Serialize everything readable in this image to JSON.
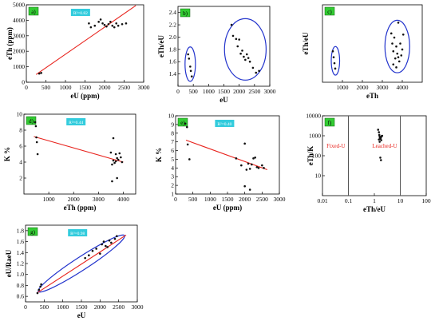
{
  "colors": {
    "point": "#111111",
    "fit": "#e8231d",
    "ellipse": "#2233cc",
    "badge": "#33cc33",
    "r2box": "#33ccdd",
    "lines": "#555555",
    "fixed_text": "#e8231d"
  },
  "chart_data": [
    {
      "id": "a",
      "panel_label": "a)",
      "type": "scatter",
      "xlabel": "eU (ppm)",
      "ylabel": "eTh (ppm)",
      "xlim": [
        0,
        3000
      ],
      "ylim": [
        0,
        5000
      ],
      "xticks": [
        "0",
        "500",
        "1000",
        "1500",
        "2000",
        "2500",
        "3000"
      ],
      "yticks": [
        "0",
        "1000",
        "2000",
        "3000",
        "4000",
        "5000"
      ],
      "r2_label": "R²=0.82",
      "fit": [
        [
          250,
          500
        ],
        [
          2800,
          4950
        ]
      ],
      "points": [
        [
          330,
          560
        ],
        [
          380,
          600
        ],
        [
          1600,
          3800
        ],
        [
          1650,
          3550
        ],
        [
          1750,
          3650
        ],
        [
          1850,
          3900
        ],
        [
          1900,
          4050
        ],
        [
          1950,
          3800
        ],
        [
          2000,
          3700
        ],
        [
          2050,
          3600
        ],
        [
          2100,
          3750
        ],
        [
          2150,
          3900
        ],
        [
          2200,
          3650
        ],
        [
          2250,
          3550
        ],
        [
          2300,
          3800
        ],
        [
          2350,
          3650
        ],
        [
          2450,
          3750
        ],
        [
          2550,
          3800
        ]
      ]
    },
    {
      "id": "b",
      "panel_label": "b)",
      "type": "scatter",
      "xlabel": "eU",
      "ylabel": "eTh/eU",
      "xlim": [
        0,
        3000
      ],
      "ylim": [
        1.2,
        2.5
      ],
      "xticks": [
        "0",
        "500",
        "1000",
        "1500",
        "2000",
        "2500",
        "3000"
      ],
      "yticks": [
        "1.4",
        "1.6",
        "1.8",
        "2.0",
        "2.2",
        "2.4"
      ],
      "ellipses": [
        {
          "cx": 400,
          "cy": 1.56,
          "rx": 170,
          "ry": 0.28
        },
        {
          "cx": 2200,
          "cy": 1.8,
          "rx": 680,
          "ry": 0.5
        }
      ],
      "points": [
        [
          330,
          1.72
        ],
        [
          360,
          1.65
        ],
        [
          400,
          1.52
        ],
        [
          420,
          1.45
        ],
        [
          450,
          1.36
        ],
        [
          1750,
          2.2
        ],
        [
          1800,
          2.02
        ],
        [
          1900,
          1.97
        ],
        [
          1950,
          1.85
        ],
        [
          2000,
          1.96
        ],
        [
          2050,
          1.73
        ],
        [
          2100,
          1.78
        ],
        [
          2150,
          1.68
        ],
        [
          2200,
          1.63
        ],
        [
          2250,
          1.72
        ],
        [
          2300,
          1.66
        ],
        [
          2350,
          1.6
        ],
        [
          2450,
          1.5
        ],
        [
          2550,
          1.42
        ],
        [
          2650,
          1.45
        ]
      ]
    },
    {
      "id": "c",
      "panel_label": "c)",
      "type": "scatter",
      "xlabel": "eTh",
      "ylabel": "eTh/eU",
      "xlim": [
        0,
        5000
      ],
      "ylim": [
        1.2,
        2.5
      ],
      "xticks": [
        "1000",
        "2000",
        "3000",
        "4000"
      ],
      "yticks": [],
      "ellipses": [
        {
          "cx": 650,
          "cy": 1.56,
          "rx": 210,
          "ry": 0.24
        },
        {
          "cx": 3750,
          "cy": 1.8,
          "rx": 620,
          "ry": 0.44
        }
      ],
      "points": [
        [
          520,
          1.72
        ],
        [
          560,
          1.62
        ],
        [
          600,
          1.52
        ],
        [
          640,
          1.43
        ],
        [
          3450,
          2.02
        ],
        [
          3500,
          1.85
        ],
        [
          3550,
          1.72
        ],
        [
          3600,
          1.95
        ],
        [
          3650,
          1.6
        ],
        [
          3700,
          1.8
        ],
        [
          3750,
          1.68
        ],
        [
          3800,
          2.2
        ],
        [
          3850,
          1.55
        ],
        [
          3900,
          1.85
        ],
        [
          3950,
          1.65
        ],
        [
          4000,
          1.75
        ],
        [
          3550,
          1.5
        ],
        [
          3700,
          1.45
        ],
        [
          3800,
          1.62
        ],
        [
          4050,
          2.0
        ]
      ]
    },
    {
      "id": "d",
      "panel_label": "d)",
      "type": "scatter",
      "xlabel": "eTh (ppm)",
      "ylabel": "K %",
      "xlim": [
        0,
        4500
      ],
      "ylim": [
        0,
        10
      ],
      "xticks": [
        "1000",
        "2000",
        "3000",
        "4000"
      ],
      "yticks": [
        "2",
        "4",
        "6",
        "8",
        "10"
      ],
      "r2_label": "R²=0.44",
      "fit": [
        [
          400,
          7.2
        ],
        [
          4000,
          4.0
        ]
      ],
      "points": [
        [
          450,
          9.0
        ],
        [
          480,
          8.5
        ],
        [
          500,
          7.1
        ],
        [
          550,
          5.0
        ],
        [
          520,
          6.5
        ],
        [
          3500,
          5.2
        ],
        [
          3550,
          3.7
        ],
        [
          3600,
          4.2
        ],
        [
          3600,
          7.0
        ],
        [
          3650,
          3.9
        ],
        [
          3700,
          4.1
        ],
        [
          3700,
          5.0
        ],
        [
          3750,
          4.5
        ],
        [
          3800,
          4.3
        ],
        [
          3850,
          5.1
        ],
        [
          3900,
          4.6
        ],
        [
          3950,
          4.0
        ],
        [
          3550,
          1.6
        ],
        [
          3750,
          2.0
        ]
      ]
    },
    {
      "id": "e",
      "panel_label": "e)",
      "type": "scatter",
      "xlabel": "eU (ppm)",
      "ylabel": "K %",
      "xlim": [
        0,
        3000
      ],
      "ylim": [
        1,
        10
      ],
      "xticks": [
        "0",
        "500",
        "1000",
        "1500",
        "2000",
        "2500",
        "3000"
      ],
      "yticks": [
        "1",
        "2",
        "3",
        "4",
        "5",
        "6",
        "7",
        "8",
        "9",
        "10"
      ],
      "r2_label": "R²=0.40",
      "fit": [
        [
          300,
          7.2
        ],
        [
          2650,
          3.8
        ]
      ],
      "points": [
        [
          280,
          9.1
        ],
        [
          330,
          8.7
        ],
        [
          350,
          6.7
        ],
        [
          400,
          5.0
        ],
        [
          1750,
          5.1
        ],
        [
          1900,
          4.3
        ],
        [
          2000,
          6.8
        ],
        [
          2050,
          3.8
        ],
        [
          2100,
          4.5
        ],
        [
          2150,
          3.9
        ],
        [
          2200,
          4.4
        ],
        [
          2250,
          5.1
        ],
        [
          2300,
          5.2
        ],
        [
          2350,
          4.1
        ],
        [
          2400,
          4.0
        ],
        [
          2500,
          4.3
        ],
        [
          2550,
          4.0
        ],
        [
          2000,
          1.9
        ],
        [
          2150,
          1.5
        ]
      ]
    },
    {
      "id": "f",
      "panel_label": "f)",
      "type": "scatter",
      "xlabel": "eTh/eU",
      "ylabel": "eTh/K",
      "xscale": "log",
      "yscale": "log",
      "xlim": [
        0.01,
        100
      ],
      "ylim": [
        1,
        10000
      ],
      "xticks": [
        "0.01",
        "0.1",
        "1",
        "10",
        "100"
      ],
      "yticks": [
        "10000",
        "1000",
        "100",
        "10"
      ],
      "vlines": [
        0.1,
        10
      ],
      "region_labels": [
        "Fixed-U",
        "Leached-U"
      ],
      "points": [
        [
          1.4,
          2000
        ],
        [
          1.5,
          1500
        ],
        [
          1.55,
          1100
        ],
        [
          1.6,
          900
        ],
        [
          1.65,
          800
        ],
        [
          1.7,
          700
        ],
        [
          1.75,
          750
        ],
        [
          1.8,
          850
        ],
        [
          1.85,
          600
        ],
        [
          1.9,
          950
        ],
        [
          2.0,
          1000
        ],
        [
          1.5,
          650
        ],
        [
          1.6,
          500
        ],
        [
          1.7,
          80
        ],
        [
          1.8,
          60
        ]
      ]
    },
    {
      "id": "g",
      "panel_label": "g)",
      "type": "scatter",
      "xlabel": "eU",
      "ylabel": "eU/RaeU",
      "xlim": [
        0,
        3000
      ],
      "ylim": [
        0.5,
        1.9
      ],
      "xticks": [
        "0",
        "500",
        "1000",
        "1500",
        "2000",
        "2500",
        "3000"
      ],
      "yticks": [
        "0.6",
        "0.8",
        "1.0",
        "1.2",
        "1.4",
        "1.6",
        "1.8"
      ],
      "r2_label": "R²=0.98",
      "fit": [
        [
          300,
          0.66
        ],
        [
          2700,
          1.72
        ]
      ],
      "ellipses": [
        {
          "cx": 1500,
          "cy": 1.2,
          "rx": 1380,
          "ry": 0.12,
          "angle": -33
        }
      ],
      "points": [
        [
          320,
          0.66
        ],
        [
          360,
          0.72
        ],
        [
          400,
          0.78
        ],
        [
          420,
          0.82
        ],
        [
          1600,
          1.3
        ],
        [
          1700,
          1.35
        ],
        [
          1800,
          1.43
        ],
        [
          1900,
          1.47
        ],
        [
          2000,
          1.38
        ],
        [
          2050,
          1.55
        ],
        [
          2100,
          1.6
        ],
        [
          2150,
          1.52
        ],
        [
          2200,
          1.5
        ],
        [
          2250,
          1.62
        ],
        [
          2300,
          1.58
        ],
        [
          2400,
          1.65
        ],
        [
          2450,
          1.7
        ]
      ]
    }
  ]
}
